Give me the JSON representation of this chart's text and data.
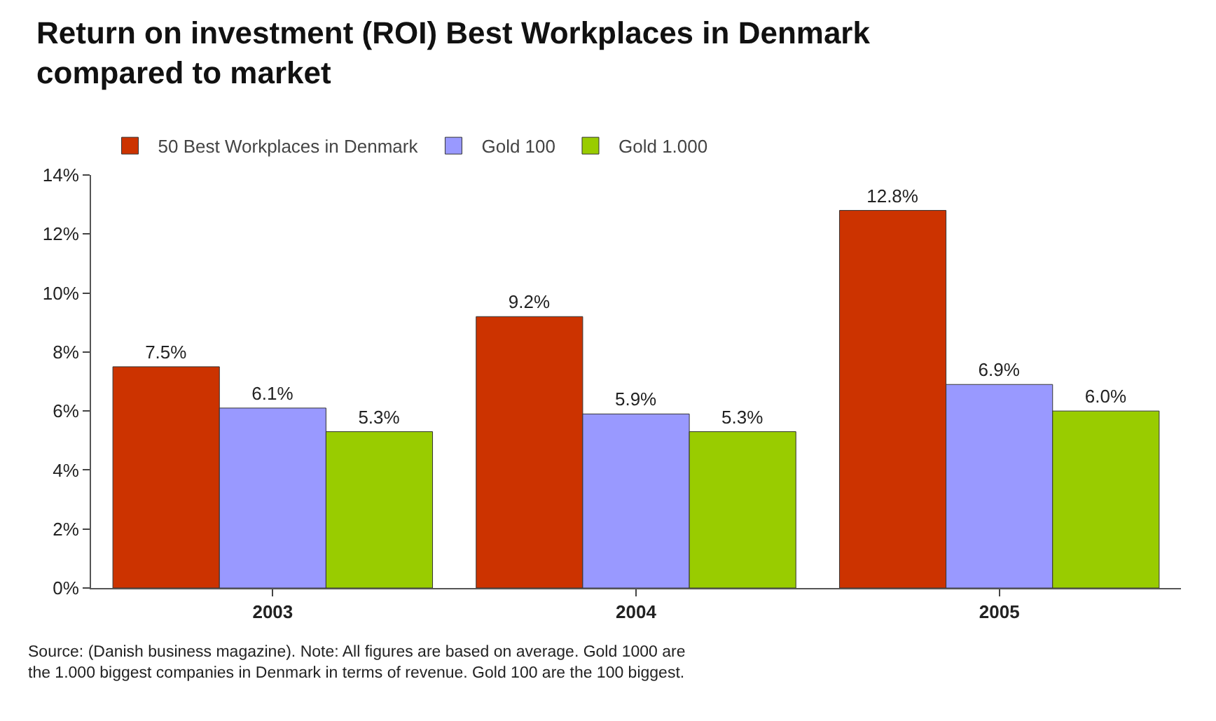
{
  "chart_data": {
    "type": "bar",
    "title": "Return on investment (ROI) Best Workplaces in Denmark\ncompared to market",
    "categories": [
      "2003",
      "2004",
      "2005"
    ],
    "series": [
      {
        "name": "50 Best Workplaces in Denmark",
        "color": "#cc3300",
        "values": [
          7.5,
          9.2,
          12.8
        ],
        "value_labels": [
          "7.5%",
          "9.2%",
          "12.8%"
        ]
      },
      {
        "name": "Gold 100",
        "color": "#9999ff",
        "values": [
          6.1,
          5.9,
          6.9
        ],
        "value_labels": [
          "6.1%",
          "5.9%",
          "6.9%"
        ]
      },
      {
        "name": "Gold 1.000",
        "color": "#99cc00",
        "values": [
          5.3,
          5.3,
          6.0
        ],
        "value_labels": [
          "5.3%",
          "5.3%",
          "6.0%"
        ]
      }
    ],
    "ylim": [
      0,
      14
    ],
    "yticks": [
      {
        "value": 0,
        "label": "0%"
      },
      {
        "value": 2,
        "label": "2%"
      },
      {
        "value": 4,
        "label": "4%"
      },
      {
        "value": 6,
        "label": "6%"
      },
      {
        "value": 8,
        "label": "8%"
      },
      {
        "value": 10,
        "label": "10%"
      },
      {
        "value": 12,
        "label": "12%"
      },
      {
        "value": 14,
        "label": "14%"
      }
    ],
    "grid": false,
    "legend": "top left",
    "annotations": [
      "Source: (Danish business magazine). Note: All figures are based on average. Gold 1000 are\nthe 1.000 biggest companies in Denmark in terms of revenue. Gold 100 are the 100 biggest."
    ]
  }
}
